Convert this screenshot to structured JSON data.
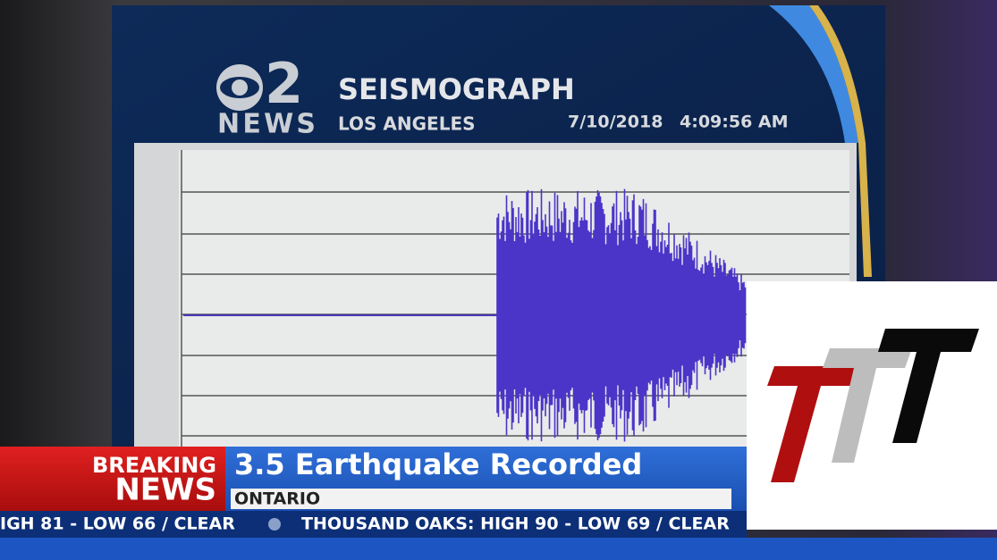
{
  "header": {
    "logo_number": "2",
    "logo_text": "NEWS",
    "title": "SEISMOGRAPH",
    "location": "LOS ANGELES",
    "date": "7/10/2018",
    "time": "4:09:56 AM"
  },
  "lower_third": {
    "tag_line1": "BREAKING",
    "tag_line2": "NEWS",
    "headline": "3.5 Earthquake Recorded",
    "location": "ONTARIO"
  },
  "ticker": [
    "IGH 81 - LOW 66 / CLEAR",
    "THOUSAND OAKS: HIGH 90 - LOW 69 / CLEAR"
  ]
}
